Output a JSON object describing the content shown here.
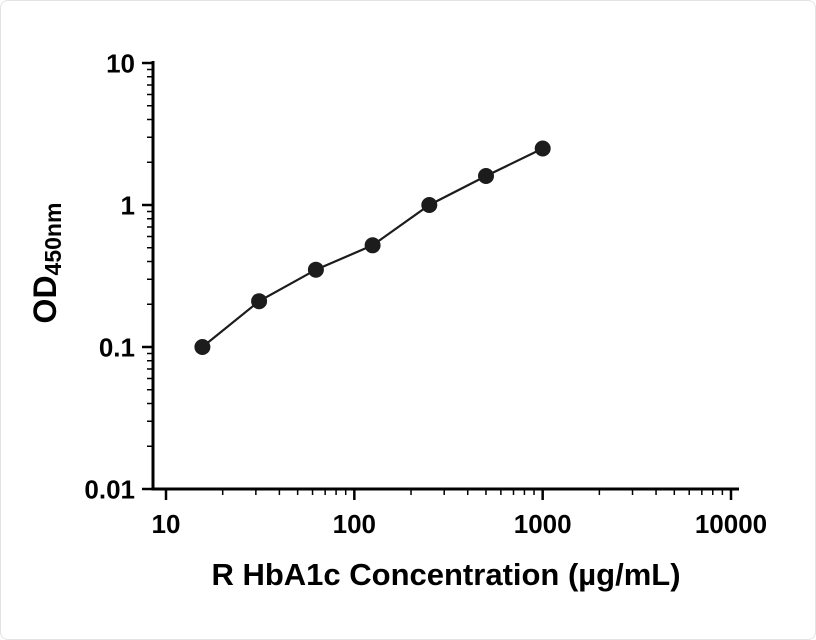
{
  "chart_data": {
    "type": "scatter",
    "x": [
      15.6,
      31.2,
      62.5,
      125,
      250,
      500,
      1000
    ],
    "y": [
      0.1,
      0.21,
      0.35,
      0.52,
      1.0,
      1.6,
      2.5
    ],
    "title": "",
    "xlabel": "R HbA1c Concentration (µg/mL)",
    "ylabel_main": "OD",
    "ylabel_sub": "450nm",
    "xscale": "log",
    "yscale": "log",
    "xlim": [
      10,
      10000
    ],
    "ylim": [
      0.01,
      10
    ],
    "x_ticks": [
      10,
      100,
      1000,
      10000
    ],
    "x_tick_labels": [
      "10",
      "100",
      "1000",
      "10000"
    ],
    "y_ticks": [
      0.01,
      0.1,
      1,
      10
    ],
    "y_tick_labels": [
      "0.01",
      "0.1",
      "1",
      "10"
    ],
    "grid": false,
    "legend": null,
    "axis_color": "#000000",
    "marker_color": "#1c1c1c",
    "line_color": "#1c1c1c"
  }
}
